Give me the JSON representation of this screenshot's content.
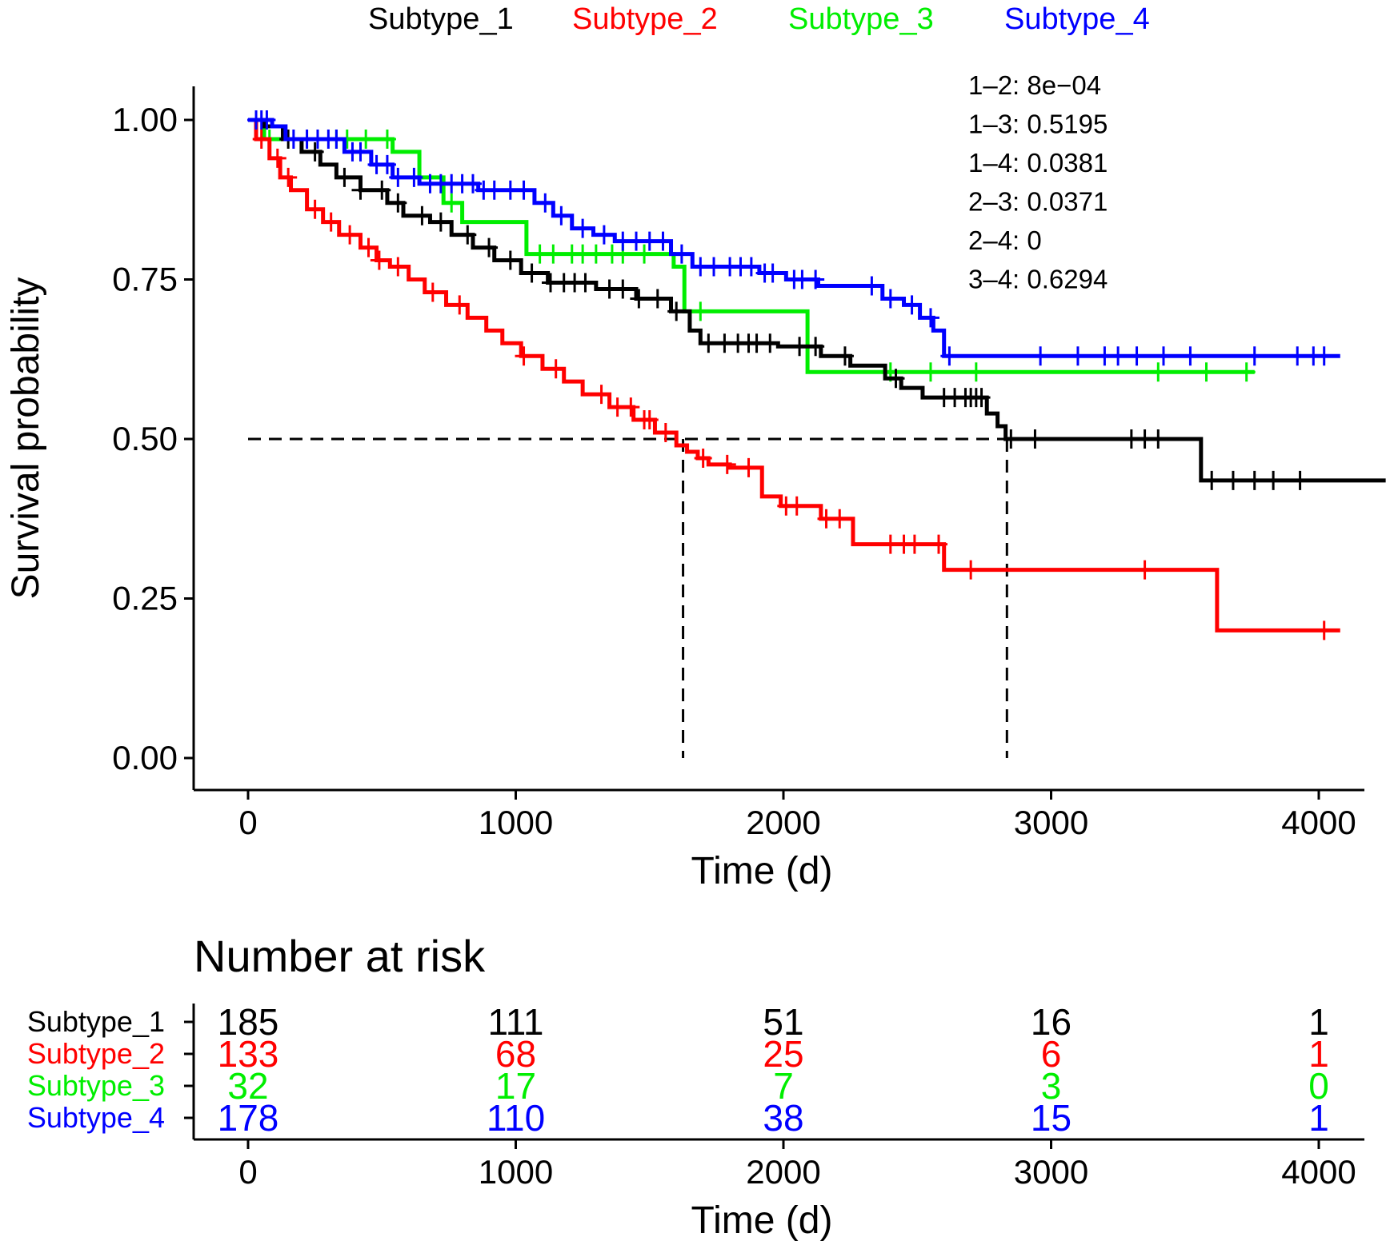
{
  "chart_data": {
    "type": "line",
    "subtype": "kaplan-meier",
    "xlabel": "Time (d)",
    "ylabel": "Survival probability",
    "xlim": [
      0,
      4250
    ],
    "ylim": [
      0,
      1.0
    ],
    "xticks": [
      0,
      1000,
      2000,
      3000,
      4000
    ],
    "xtick_labels": [
      "0",
      "1000",
      "2000",
      "3000",
      "4000"
    ],
    "yticks": [
      0,
      0.25,
      0.5,
      0.75,
      1.0
    ],
    "ytick_labels": [
      "0.00",
      "0.25",
      "0.50",
      "0.75",
      "1.00"
    ],
    "legend_position": "top",
    "colors": {
      "Subtype_1": "#000000",
      "Subtype_2": "#ff0000",
      "Subtype_3": "#00ee00",
      "Subtype_4": "#0000ff"
    },
    "series": [
      {
        "name": "Subtype_1",
        "color": "#000000",
        "steps": [
          [
            0,
            1.0
          ],
          [
            60,
            0.99
          ],
          [
            130,
            0.97
          ],
          [
            200,
            0.95
          ],
          [
            270,
            0.93
          ],
          [
            330,
            0.91
          ],
          [
            420,
            0.89
          ],
          [
            520,
            0.87
          ],
          [
            580,
            0.85
          ],
          [
            680,
            0.84
          ],
          [
            760,
            0.82
          ],
          [
            840,
            0.8
          ],
          [
            920,
            0.78
          ],
          [
            1020,
            0.76
          ],
          [
            1120,
            0.745
          ],
          [
            1300,
            0.735
          ],
          [
            1450,
            0.72
          ],
          [
            1580,
            0.7
          ],
          [
            1650,
            0.67
          ],
          [
            1690,
            0.65
          ],
          [
            1980,
            0.645
          ],
          [
            2140,
            0.63
          ],
          [
            2250,
            0.615
          ],
          [
            2380,
            0.595
          ],
          [
            2440,
            0.58
          ],
          [
            2520,
            0.565
          ],
          [
            2760,
            0.54
          ],
          [
            2800,
            0.52
          ],
          [
            2830,
            0.5
          ],
          [
            3560,
            0.435
          ],
          [
            4250,
            0.435
          ]
        ],
        "censor_x": [
          150,
          250,
          360,
          420,
          500,
          560,
          650,
          720,
          820,
          900,
          980,
          1060,
          1130,
          1180,
          1220,
          1260,
          1350,
          1400,
          1460,
          1530,
          1600,
          1720,
          1780,
          1830,
          1870,
          1900,
          1950,
          2060,
          2120,
          2230,
          2420,
          2600,
          2640,
          2680,
          2700,
          2720,
          2740,
          2850,
          2940,
          3300,
          3350,
          3400,
          3600,
          3680,
          3760,
          3830,
          3930
        ]
      },
      {
        "name": "Subtype_2",
        "color": "#ff0000",
        "steps": [
          [
            0,
            1.0
          ],
          [
            30,
            0.97
          ],
          [
            80,
            0.94
          ],
          [
            120,
            0.91
          ],
          [
            160,
            0.89
          ],
          [
            220,
            0.86
          ],
          [
            280,
            0.84
          ],
          [
            340,
            0.82
          ],
          [
            420,
            0.8
          ],
          [
            480,
            0.78
          ],
          [
            530,
            0.77
          ],
          [
            600,
            0.75
          ],
          [
            660,
            0.73
          ],
          [
            740,
            0.71
          ],
          [
            820,
            0.69
          ],
          [
            890,
            0.67
          ],
          [
            950,
            0.65
          ],
          [
            1020,
            0.63
          ],
          [
            1100,
            0.61
          ],
          [
            1180,
            0.59
          ],
          [
            1250,
            0.57
          ],
          [
            1350,
            0.55
          ],
          [
            1440,
            0.53
          ],
          [
            1520,
            0.51
          ],
          [
            1600,
            0.49
          ],
          [
            1640,
            0.48
          ],
          [
            1680,
            0.47
          ],
          [
            1720,
            0.46
          ],
          [
            1800,
            0.455
          ],
          [
            1920,
            0.41
          ],
          [
            1990,
            0.395
          ],
          [
            2140,
            0.375
          ],
          [
            2260,
            0.335
          ],
          [
            2600,
            0.295
          ],
          [
            3620,
            0.2
          ],
          [
            4080,
            0.2
          ]
        ],
        "censor_x": [
          50,
          110,
          150,
          250,
          310,
          380,
          450,
          490,
          560,
          690,
          790,
          1030,
          1150,
          1320,
          1380,
          1430,
          1480,
          1500,
          1560,
          1700,
          1790,
          1870,
          2010,
          2050,
          2160,
          2210,
          2400,
          2450,
          2490,
          2580,
          2700,
          3350,
          4020
        ]
      },
      {
        "name": "Subtype_3",
        "color": "#00ee00",
        "steps": [
          [
            0,
            1.0
          ],
          [
            60,
            0.97
          ],
          [
            540,
            0.95
          ],
          [
            640,
            0.91
          ],
          [
            730,
            0.87
          ],
          [
            800,
            0.84
          ],
          [
            1040,
            0.79
          ],
          [
            1590,
            0.77
          ],
          [
            1630,
            0.7
          ],
          [
            2090,
            0.605
          ],
          [
            3760,
            0.605
          ]
        ],
        "censor_x": [
          80,
          330,
          370,
          440,
          520,
          760,
          1090,
          1140,
          1210,
          1250,
          1300,
          1360,
          1400,
          1480,
          1690,
          2400,
          2550,
          2720,
          3400,
          3580,
          3730
        ]
      },
      {
        "name": "Subtype_4",
        "color": "#0000ff",
        "steps": [
          [
            0,
            1.0
          ],
          [
            90,
            0.99
          ],
          [
            140,
            0.97
          ],
          [
            360,
            0.95
          ],
          [
            460,
            0.93
          ],
          [
            540,
            0.91
          ],
          [
            640,
            0.9
          ],
          [
            860,
            0.89
          ],
          [
            1070,
            0.87
          ],
          [
            1140,
            0.85
          ],
          [
            1210,
            0.83
          ],
          [
            1290,
            0.82
          ],
          [
            1370,
            0.81
          ],
          [
            1580,
            0.79
          ],
          [
            1660,
            0.77
          ],
          [
            1910,
            0.76
          ],
          [
            2010,
            0.75
          ],
          [
            2130,
            0.74
          ],
          [
            2230,
            0.74
          ],
          [
            2370,
            0.72
          ],
          [
            2450,
            0.71
          ],
          [
            2510,
            0.69
          ],
          [
            2560,
            0.67
          ],
          [
            2600,
            0.63
          ],
          [
            4080,
            0.63
          ]
        ],
        "censor_x": [
          30,
          50,
          70,
          170,
          220,
          260,
          300,
          330,
          390,
          420,
          480,
          520,
          560,
          620,
          680,
          720,
          760,
          800,
          840,
          880,
          920,
          980,
          1030,
          1110,
          1170,
          1250,
          1330,
          1400,
          1450,
          1500,
          1550,
          1620,
          1690,
          1740,
          1800,
          1840,
          1880,
          1930,
          1960,
          2040,
          2070,
          2120,
          2330,
          2400,
          2480,
          2550,
          2620,
          2960,
          3100,
          3200,
          3250,
          3320,
          3420,
          3520,
          3760,
          3920,
          3980,
          4020
        ]
      }
    ],
    "median_lines": [
      {
        "x": 1625,
        "y": 0.5
      },
      {
        "x": 2835,
        "y": 0.5
      }
    ],
    "pvalues": [
      "1–2: 8e−04",
      "1–3: 0.5195",
      "1–4: 0.0381",
      "2–3: 0.0371",
      "2–4: 0",
      "3–4: 0.6294"
    ],
    "risk_table": {
      "title": "Number at risk",
      "xlabel": "Time (d)",
      "times": [
        0,
        1000,
        2000,
        3000,
        4000
      ],
      "rows": [
        {
          "name": "Subtype_1",
          "color": "#000000",
          "values": [
            "185",
            "111",
            "51",
            "16",
            "1"
          ]
        },
        {
          "name": "Subtype_2",
          "color": "#ff0000",
          "values": [
            "133",
            "68",
            "25",
            "6",
            "1"
          ]
        },
        {
          "name": "Subtype_3",
          "color": "#00ee00",
          "values": [
            "32",
            "17",
            "7",
            "3",
            "0"
          ]
        },
        {
          "name": "Subtype_4",
          "color": "#0000ff",
          "values": [
            "178",
            "110",
            "38",
            "15",
            "1"
          ]
        }
      ]
    }
  }
}
